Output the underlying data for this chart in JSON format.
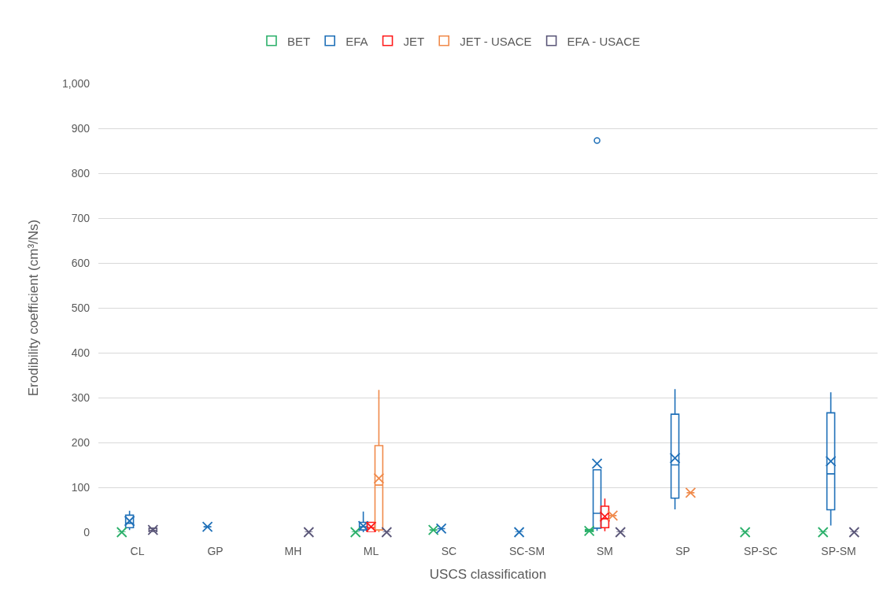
{
  "chart_data": {
    "type": "box",
    "categories": [
      "CL",
      "GP",
      "MH",
      "ML",
      "SC",
      "SC-SM",
      "SM",
      "SP",
      "SP-SC",
      "SP-SM"
    ],
    "series": [
      {
        "name": "BET",
        "color": "#2bb06a",
        "boxes": [
          {
            "low": 0,
            "q1": 0,
            "median": 0,
            "q3": 0,
            "high": 0,
            "mean": 0
          },
          null,
          null,
          {
            "low": 0,
            "q1": 0,
            "median": 0,
            "q3": 0,
            "high": 0,
            "mean": 0
          },
          {
            "low": 5,
            "q1": 5,
            "median": 5,
            "q3": 5,
            "high": 5,
            "mean": 5
          },
          null,
          {
            "low": 0,
            "q1": 0,
            "median": 3,
            "q3": 6,
            "high": 6,
            "mean": 3
          },
          null,
          {
            "low": 0,
            "q1": 0,
            "median": 0,
            "q3": 0,
            "high": 0,
            "mean": 0
          },
          {
            "low": 0,
            "q1": 0,
            "median": 0,
            "q3": 0,
            "high": 0,
            "mean": 0
          }
        ]
      },
      {
        "name": "EFA",
        "color": "#1f70b8",
        "boxes": [
          {
            "low": 5,
            "q1": 10,
            "median": 20,
            "q3": 38,
            "high": 48,
            "mean": 25
          },
          {
            "low": 12,
            "q1": 12,
            "median": 12,
            "q3": 12,
            "high": 12,
            "mean": 12
          },
          null,
          {
            "low": 0,
            "q1": 5,
            "median": 12,
            "q3": 22,
            "high": 46,
            "mean": 14
          },
          {
            "low": 8,
            "q1": 8,
            "median": 8,
            "q3": 8,
            "high": 8,
            "mean": 8
          },
          {
            "low": 0,
            "q1": 0,
            "median": 0,
            "q3": 0,
            "high": 0,
            "mean": 0
          },
          {
            "low": 3,
            "q1": 9,
            "median": 42,
            "q3": 139,
            "high": 139,
            "mean": 153,
            "outliers": [
              873
            ]
          },
          {
            "low": 51,
            "q1": 76,
            "median": 150,
            "q3": 263,
            "high": 319,
            "mean": 165
          },
          null,
          {
            "low": 15,
            "q1": 50,
            "median": 130,
            "q3": 266,
            "high": 312,
            "mean": 158
          }
        ]
      },
      {
        "name": "JET",
        "color": "#ff1a1a",
        "boxes": [
          null,
          null,
          null,
          {
            "low": 0,
            "q1": 0,
            "median": 10,
            "q3": 22,
            "high": 22,
            "mean": 12
          },
          null,
          null,
          {
            "low": 2,
            "q1": 10,
            "median": 30,
            "q3": 58,
            "high": 75,
            "mean": 35
          },
          null,
          null,
          null
        ]
      },
      {
        "name": "JET - USACE",
        "color": "#f08a4b",
        "boxes": [
          null,
          null,
          null,
          {
            "low": 0,
            "q1": 5,
            "median": 105,
            "q3": 193,
            "high": 317,
            "mean": 120
          },
          null,
          null,
          {
            "low": 37,
            "q1": 37,
            "median": 37,
            "q3": 37,
            "high": 37,
            "mean": 37
          },
          {
            "low": 88,
            "q1": 88,
            "median": 88,
            "q3": 88,
            "high": 88,
            "mean": 88
          },
          null,
          null
        ]
      },
      {
        "name": "EFA - USACE",
        "color": "#5a5678",
        "boxes": [
          {
            "low": 0,
            "q1": 0,
            "median": 4,
            "q3": 9,
            "high": 9,
            "mean": 5
          },
          null,
          {
            "low": 0,
            "q1": 0,
            "median": 0,
            "q3": 0,
            "high": 0,
            "mean": 0
          },
          {
            "low": 0,
            "q1": 0,
            "median": 0,
            "q3": 0,
            "high": 0,
            "mean": 0
          },
          null,
          null,
          {
            "low": 0,
            "q1": 0,
            "median": 0,
            "q3": 0,
            "high": 0,
            "mean": 0
          },
          null,
          null,
          {
            "low": 0,
            "q1": 0,
            "median": 0,
            "q3": 0,
            "high": 0,
            "mean": 0
          }
        ]
      }
    ],
    "xlabel": "USCS classification",
    "ylabel": "Erodibility coefficient (cm³/Ns)",
    "ylim": [
      0,
      1000
    ],
    "yticks": [
      0,
      100,
      200,
      300,
      400,
      500,
      600,
      700,
      800,
      900,
      {
        "value": 1000,
        "label": "1,000"
      }
    ],
    "grid": "y",
    "legend": "top",
    "marker": "cross"
  }
}
